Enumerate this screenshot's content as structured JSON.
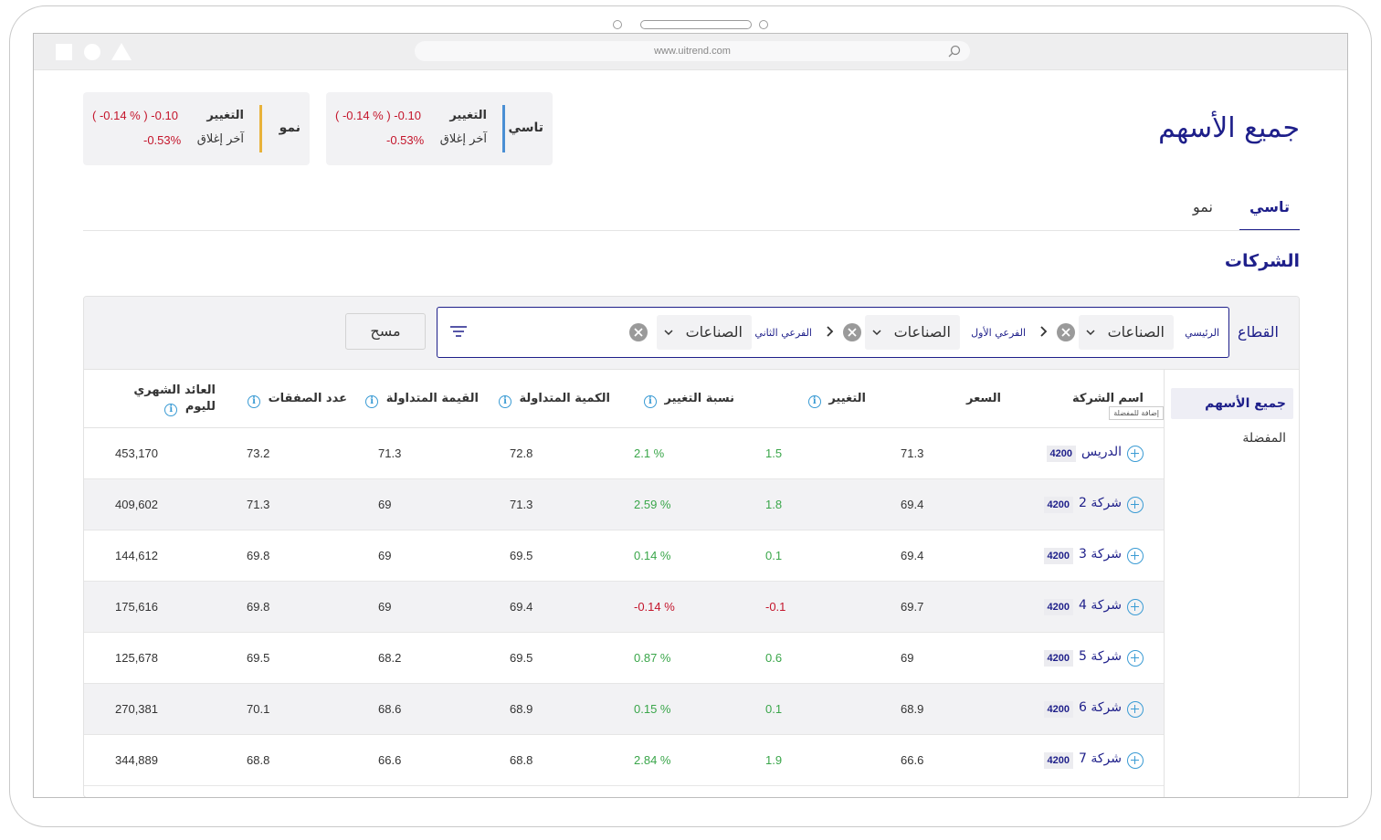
{
  "browser": {
    "url": "www.uitrend.com"
  },
  "page": {
    "title": "جميع الأسهم"
  },
  "index_cards": [
    {
      "name": "تاسي",
      "color": "#4a8fd4",
      "change_label": "التغيير",
      "change_value": "( -0.14 % )  -0.10",
      "close_label": "آخر إغلاق",
      "close_value": "-0.53%"
    },
    {
      "name": "نمو",
      "color": "#e8b23a",
      "change_label": "التغيير",
      "change_value": "( -0.14 % )  -0.10",
      "close_label": "آخر إغلاق",
      "close_value": "-0.53%"
    }
  ],
  "tabs": [
    {
      "label": "تاسي",
      "active": true
    },
    {
      "label": "نمو",
      "active": false
    }
  ],
  "section": {
    "title": "الشركات"
  },
  "filter": {
    "label": "القطاع",
    "levels": [
      {
        "level_label": "الرئيسي",
        "value": "الصناعات"
      },
      {
        "level_label": "الفرعي الأول",
        "value": "الصناعات"
      },
      {
        "level_label": "الفرعي الثاني",
        "value": "الصناعات"
      }
    ],
    "clear_label": "مسح"
  },
  "sidenav": {
    "items": [
      {
        "label": "جميع الأسهم",
        "active": true
      },
      {
        "label": "المفضلة",
        "active": false
      }
    ]
  },
  "table": {
    "columns": {
      "company": "اسم الشركة",
      "price": "السعر",
      "change": "التغيير",
      "change_pct": "نسبة التغيير",
      "volume": "الكمية المتداولة",
      "value": "القيمة المتداولة",
      "trades": "عدد الصفقات",
      "monthly_return_1": "العائد الشهري",
      "monthly_return_2": "لليوم"
    },
    "tooltip": "إضافة للمفضلة",
    "rows": [
      {
        "name": "الدريس",
        "code": "4200",
        "price": "71.3",
        "change": "1.5",
        "change_pct": "2.1 %",
        "volume": "72.8",
        "value": "71.3",
        "trades": "73.2",
        "monthly": "453,170",
        "dir": "pos"
      },
      {
        "name": "شركة 2",
        "code": "4200",
        "price": "69.4",
        "change": "1.8",
        "change_pct": "2.59 %",
        "volume": "71.3",
        "value": "69",
        "trades": "71.3",
        "monthly": "409,602",
        "dir": "pos"
      },
      {
        "name": "شركة 3",
        "code": "4200",
        "price": "69.4",
        "change": "0.1",
        "change_pct": "0.14 %",
        "volume": "69.5",
        "value": "69",
        "trades": "69.8",
        "monthly": "144,612",
        "dir": "pos"
      },
      {
        "name": "شركة 4",
        "code": "4200",
        "price": "69.7",
        "change": "-0.1",
        "change_pct": "-0.14 %",
        "volume": "69.4",
        "value": "69",
        "trades": "69.8",
        "monthly": "175,616",
        "dir": "neg"
      },
      {
        "name": "شركة 5",
        "code": "4200",
        "price": "69",
        "change": "0.6",
        "change_pct": "0.87 %",
        "volume": "69.5",
        "value": "68.2",
        "trades": "69.5",
        "monthly": "125,678",
        "dir": "pos"
      },
      {
        "name": "شركة 6",
        "code": "4200",
        "price": "68.9",
        "change": "0.1",
        "change_pct": "0.15 %",
        "volume": "68.9",
        "value": "68.6",
        "trades": "70.1",
        "monthly": "270,381",
        "dir": "pos"
      },
      {
        "name": "شركة 7",
        "code": "4200",
        "price": "66.6",
        "change": "1.9",
        "change_pct": "2.84 %",
        "volume": "68.8",
        "value": "66.6",
        "trades": "68.8",
        "monthly": "344,889",
        "dir": "pos"
      }
    ]
  }
}
